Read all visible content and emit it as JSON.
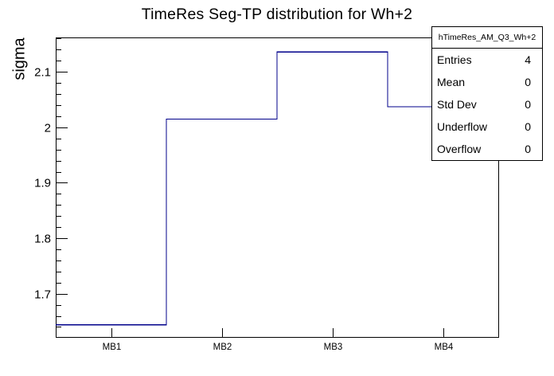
{
  "title": "TimeRes Seg-TP distribution for Wh+2",
  "stats_box": {
    "header": "hTimeRes_AM_Q3_Wh+2",
    "rows": [
      {
        "label": "Entries",
        "value": "4"
      },
      {
        "label": "Mean",
        "value": "0"
      },
      {
        "label": "Std Dev",
        "value": "0"
      },
      {
        "label": "Underflow",
        "value": "0"
      },
      {
        "label": "Overflow",
        "value": "0"
      }
    ]
  },
  "chart_data": {
    "type": "step-histogram",
    "title": "TimeRes Seg-TP distribution for Wh+2",
    "xlabel": "",
    "ylabel": "sigma",
    "categories": [
      "MB1",
      "MB2",
      "MB3",
      "MB4"
    ],
    "values": [
      1.644,
      2.015,
      2.136,
      2.037
    ],
    "ylim": [
      1.622,
      2.162
    ],
    "yticks_major": [
      1.7,
      1.8,
      1.9,
      2.0,
      2.1
    ],
    "ytick_labels": [
      "1.7",
      "1.8",
      "1.9",
      "2",
      "2.1"
    ],
    "ytick_minor_step": 0.02,
    "grid": false,
    "legend": "none",
    "line_color": "#00008b",
    "frame_color": "#000000",
    "background_color": "#ffffff"
  }
}
